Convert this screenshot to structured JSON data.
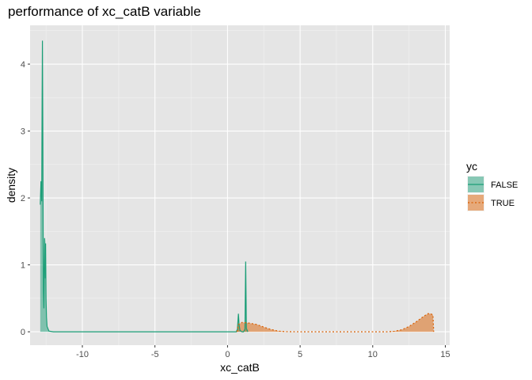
{
  "chart_data": {
    "type": "area",
    "title": "performance of xc_catB variable",
    "xlabel": "xc_catB",
    "ylabel": "density",
    "xlim": [
      -13.6,
      15.3
    ],
    "ylim": [
      -0.2,
      4.58
    ],
    "x_ticks": [
      -10,
      -5,
      0,
      5,
      10,
      15
    ],
    "x_tick_labels": [
      "-10",
      "-5",
      "0",
      "5",
      "10",
      "15"
    ],
    "y_ticks": [
      0,
      1,
      2,
      3,
      4
    ],
    "y_tick_labels": [
      "0",
      "1",
      "2",
      "3",
      "4"
    ],
    "grid": true,
    "background": "#e5e5e5",
    "legend": {
      "title": "yc",
      "position": "right",
      "entries": [
        {
          "label": "FALSE",
          "color": "#1b9e77",
          "line": "solid"
        },
        {
          "label": "TRUE",
          "color": "#d95f02",
          "line": "dotted"
        }
      ]
    },
    "series": [
      {
        "name": "FALSE",
        "color": "#1b9e77",
        "fill_opacity": 0.5,
        "line": "solid",
        "points": [
          [
            -12.9,
            1.9
          ],
          [
            -12.85,
            2.25
          ],
          [
            -12.8,
            1.95
          ],
          [
            -12.77,
            3.5
          ],
          [
            -12.75,
            4.35
          ],
          [
            -12.72,
            2.9
          ],
          [
            -12.7,
            1.5
          ],
          [
            -12.68,
            0.6
          ],
          [
            -12.65,
            0.35
          ],
          [
            -12.6,
            1.4
          ],
          [
            -12.57,
            1.25
          ],
          [
            -12.55,
            0.8
          ],
          [
            -12.53,
            1.32
          ],
          [
            -12.5,
            0.5
          ],
          [
            -12.47,
            0.22
          ],
          [
            -12.43,
            0.08
          ],
          [
            -12.3,
            0.01
          ],
          [
            -12.0,
            0.0
          ],
          [
            0.6,
            0.0
          ],
          [
            0.68,
            0.04
          ],
          [
            0.75,
            0.27
          ],
          [
            0.8,
            0.1
          ],
          [
            0.86,
            0.02
          ],
          [
            1.0,
            0.0
          ],
          [
            1.1,
            0.0
          ],
          [
            1.2,
            0.04
          ],
          [
            1.25,
            1.05
          ],
          [
            1.3,
            0.05
          ],
          [
            1.4,
            0.0
          ]
        ]
      },
      {
        "name": "TRUE",
        "color": "#d95f02",
        "fill_opacity": 0.5,
        "line": "dotted",
        "points": [
          [
            0.65,
            0.0
          ],
          [
            0.75,
            0.11
          ],
          [
            1.0,
            0.14
          ],
          [
            1.5,
            0.13
          ],
          [
            2.0,
            0.11
          ],
          [
            2.5,
            0.07
          ],
          [
            3.0,
            0.035
          ],
          [
            3.5,
            0.01
          ],
          [
            4.0,
            0.002
          ],
          [
            5.0,
            0.0
          ],
          [
            11.0,
            0.0
          ],
          [
            11.5,
            0.008
          ],
          [
            12.0,
            0.03
          ],
          [
            12.5,
            0.08
          ],
          [
            13.0,
            0.15
          ],
          [
            13.5,
            0.23
          ],
          [
            13.8,
            0.27
          ],
          [
            14.0,
            0.27
          ],
          [
            14.15,
            0.25
          ],
          [
            14.2,
            0.0
          ]
        ]
      }
    ]
  }
}
